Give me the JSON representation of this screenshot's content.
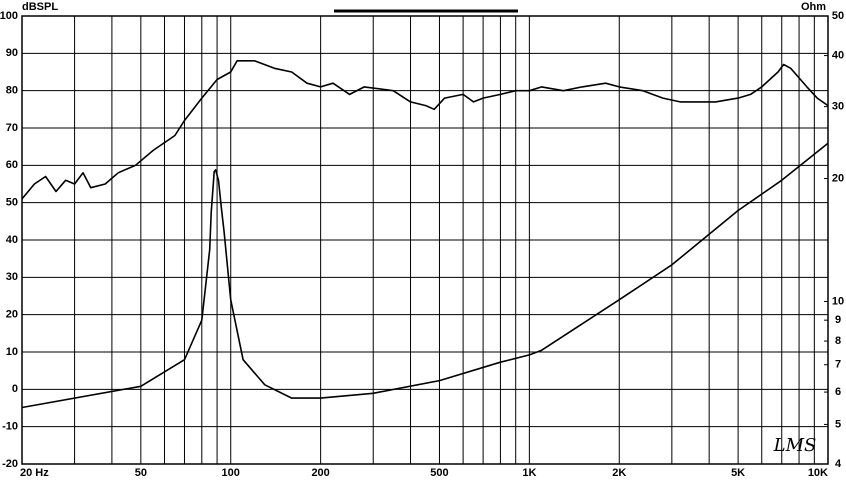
{
  "chart_data": {
    "type": "line",
    "y_label": "dBSPL",
    "y2_label": "Ohm",
    "logo": "LMS",
    "xscale": "log",
    "y2scale": "log",
    "grid": true,
    "xlim": [
      20,
      10000
    ],
    "ylim": [
      -20,
      100
    ],
    "y2lim": [
      4,
      50
    ],
    "xticks": [
      {
        "value": 20,
        "label": "20 Hz"
      },
      50,
      100,
      200,
      500,
      {
        "value": 1000,
        "label": "1K"
      },
      {
        "value": 2000,
        "label": "2K"
      },
      {
        "value": 5000,
        "label": "5K"
      },
      {
        "value": 10000,
        "label": "10K"
      }
    ],
    "xminor": [
      30,
      40,
      60,
      70,
      80,
      90,
      300,
      400,
      600,
      700,
      800,
      900,
      3000,
      4000,
      6000,
      7000,
      8000,
      9000
    ],
    "yticks": [
      -20,
      -10,
      0,
      10,
      20,
      30,
      40,
      50,
      60,
      70,
      80,
      90,
      100
    ],
    "y2ticks": [
      4,
      5,
      6,
      7,
      8,
      9,
      10,
      20,
      30,
      40,
      50
    ],
    "series": [
      {
        "color": "#000000",
        "x": [
          20,
          22,
          24,
          26,
          28,
          30,
          32,
          34,
          38,
          42,
          48,
          55,
          65,
          70,
          80,
          90,
          100,
          105,
          120,
          140,
          160,
          180,
          200,
          220,
          250,
          280,
          350,
          400,
          450,
          480,
          520,
          600,
          650,
          700,
          800,
          900,
          1000,
          1100,
          1300,
          1500,
          1800,
          2000,
          2400,
          2800,
          3200,
          3600,
          4200,
          5000,
          5500,
          6000,
          6800,
          7100,
          7500,
          8500,
          9200,
          10000
        ],
        "values": [
          51,
          55,
          57,
          53,
          56,
          55,
          58,
          54,
          55,
          58,
          60,
          64,
          68,
          72,
          78,
          83,
          85,
          88,
          88,
          86,
          85,
          82,
          81,
          82,
          79,
          81,
          80,
          77,
          76,
          75,
          78,
          79,
          77,
          78,
          79,
          80,
          80,
          81,
          80,
          81,
          82,
          81,
          80,
          78,
          77,
          77,
          77,
          78,
          79,
          81,
          85,
          87,
          86,
          81,
          78,
          76
        ]
      },
      {
        "color": "#000000",
        "axis": "y2",
        "x": [
          20,
          50,
          70,
          80,
          85,
          86,
          88,
          89,
          91,
          93,
          95,
          100,
          110,
          130,
          160,
          200,
          300,
          500,
          800,
          1000,
          1100,
          2000,
          3000,
          5000,
          7000,
          10000
        ],
        "values": [
          5.5,
          6.2,
          7.2,
          9.0,
          13.4,
          16.5,
          20.8,
          21.0,
          19.8,
          17.0,
          14.8,
          10.1,
          7.2,
          6.25,
          5.8,
          5.8,
          5.96,
          6.4,
          7.1,
          7.4,
          7.6,
          10.1,
          12.3,
          16.7,
          19.8,
          24.4
        ]
      }
    ]
  }
}
